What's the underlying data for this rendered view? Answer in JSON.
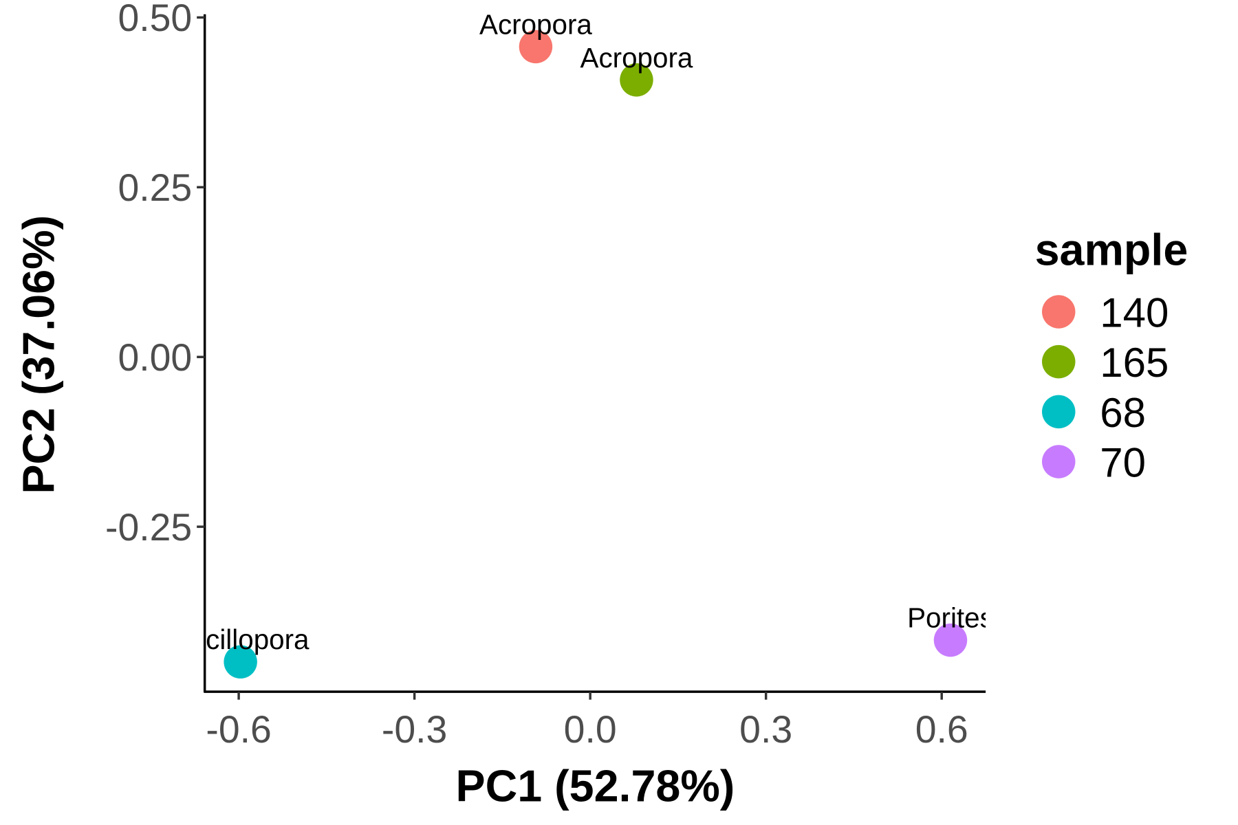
{
  "chart_data": {
    "type": "scatter",
    "title": "",
    "xlabel": "PC1 (52.78%)",
    "ylabel": "PC2 (37.06%)",
    "xlim": [
      -0.658,
      0.675
    ],
    "ylim": [
      -0.493,
      0.5
    ],
    "xticks": [
      -0.6,
      -0.3,
      0.0,
      0.3,
      0.6
    ],
    "xtick_labels": [
      "-0.6",
      "-0.3",
      "0.0",
      "0.3",
      "0.6"
    ],
    "yticks": [
      0.5,
      0.25,
      0.0,
      -0.25
    ],
    "ytick_labels": [
      "0.50",
      "0.25",
      "0.00",
      "-0.25"
    ],
    "grid": false,
    "legend": {
      "title": "sample",
      "position": "right",
      "entries": [
        {
          "label": "140",
          "color": "#F8766D"
        },
        {
          "label": "165",
          "color": "#7CAE00"
        },
        {
          "label": "68",
          "color": "#00BFC4"
        },
        {
          "label": "70",
          "color": "#C77CFF"
        }
      ]
    },
    "points": [
      {
        "sample": "140",
        "x": -0.093,
        "y": 0.457,
        "label": "Acropora",
        "color": "#F8766D"
      },
      {
        "sample": "165",
        "x": 0.079,
        "y": 0.408,
        "label": "Acropora",
        "color": "#7CAE00"
      },
      {
        "sample": "68",
        "x": -0.597,
        "y": -0.449,
        "label": "Pocillopora",
        "color": "#00BFC4"
      },
      {
        "sample": "70",
        "x": 0.615,
        "y": -0.417,
        "label": "Porites",
        "color": "#C77CFF"
      }
    ]
  }
}
